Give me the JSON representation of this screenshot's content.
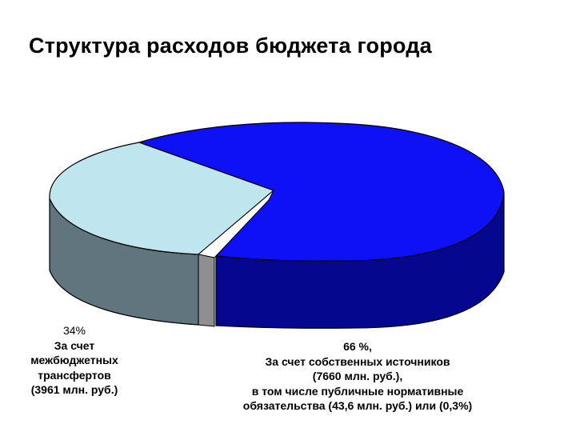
{
  "title": "Структура расходов бюджета города",
  "chart_data": {
    "type": "pie",
    "style": "3d-exploded",
    "title": "Структура расходов бюджета города",
    "slices": [
      {
        "name": "За счет собственных источников",
        "value": 65.8,
        "amount": 7660,
        "color": "#0E10F5",
        "side_color": "#05088F",
        "label_lines": [
          "66 %,",
          "За счет собственных источников",
          "(7660 млн. руб.),",
          "в том числе публичные нормативные",
          "обязательства (43,6 млн. руб.) или (0,3%)"
        ]
      },
      {
        "name": "За счет межбюджетных трансфертов",
        "value": 34.2,
        "amount": 3961,
        "color": "#BFE6EE",
        "side_color": "#60757E",
        "label_lines": [
          "34%",
          "За счет",
          "межбюджетных",
          "трансфертов",
          "(3961 млн. руб.)"
        ]
      }
    ]
  }
}
